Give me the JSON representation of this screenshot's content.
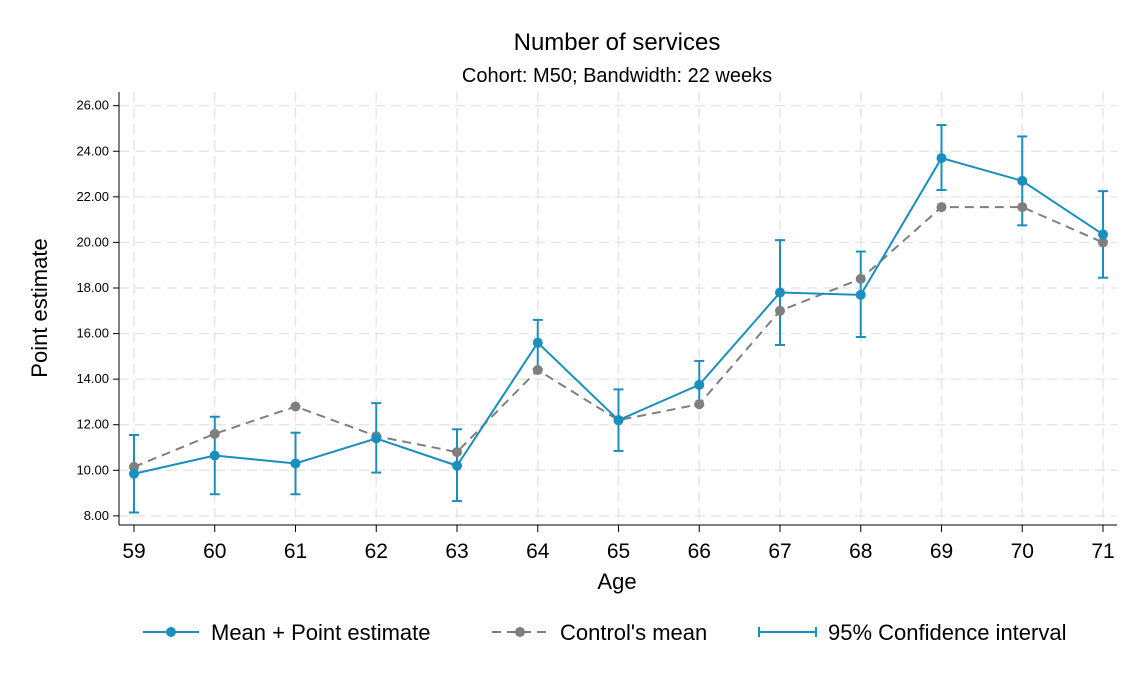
{
  "chart_data": {
    "type": "line",
    "title": "Number of services",
    "subtitle": "Cohort: M50; Bandwidth: 22 weeks",
    "xlabel": "Age",
    "ylabel": "Point estimate",
    "x": [
      59,
      60,
      61,
      62,
      63,
      64,
      65,
      66,
      67,
      68,
      69,
      70,
      71
    ],
    "xticks": [
      "59",
      "60",
      "61",
      "62",
      "63",
      "64",
      "65",
      "66",
      "67",
      "68",
      "69",
      "70",
      "71"
    ],
    "yticks": [
      "8.00",
      "10.00",
      "12.00",
      "14.00",
      "16.00",
      "18.00",
      "20.00",
      "22.00",
      "24.00",
      "26.00"
    ],
    "ylim": [
      7.6,
      26.6
    ],
    "grid": true,
    "legend_position": "bottom",
    "colors": {
      "estimate": "#1a8fbf",
      "control": "#7f7f7f",
      "ci": "#1a8fbf"
    },
    "series": [
      {
        "name": "Mean + Point estimate",
        "style": "solid-marker",
        "values": [
          9.85,
          10.65,
          10.3,
          11.4,
          10.2,
          15.6,
          12.2,
          13.75,
          17.8,
          17.7,
          23.7,
          22.7,
          20.35
        ]
      },
      {
        "name": "Control's mean",
        "style": "dashed-marker",
        "values": [
          10.15,
          11.6,
          12.8,
          11.5,
          10.8,
          14.4,
          12.2,
          12.9,
          17.0,
          18.4,
          21.55,
          21.55,
          20.0
        ]
      },
      {
        "name": "95% Confidence interval",
        "style": "errorbar",
        "lower": [
          8.15,
          8.95,
          8.95,
          9.9,
          8.65,
          14.45,
          10.85,
          12.85,
          15.5,
          15.85,
          22.3,
          20.75,
          18.45
        ],
        "upper": [
          11.55,
          12.35,
          11.65,
          12.95,
          11.8,
          16.6,
          13.55,
          14.8,
          20.1,
          19.6,
          25.15,
          24.65,
          22.25
        ]
      }
    ]
  }
}
